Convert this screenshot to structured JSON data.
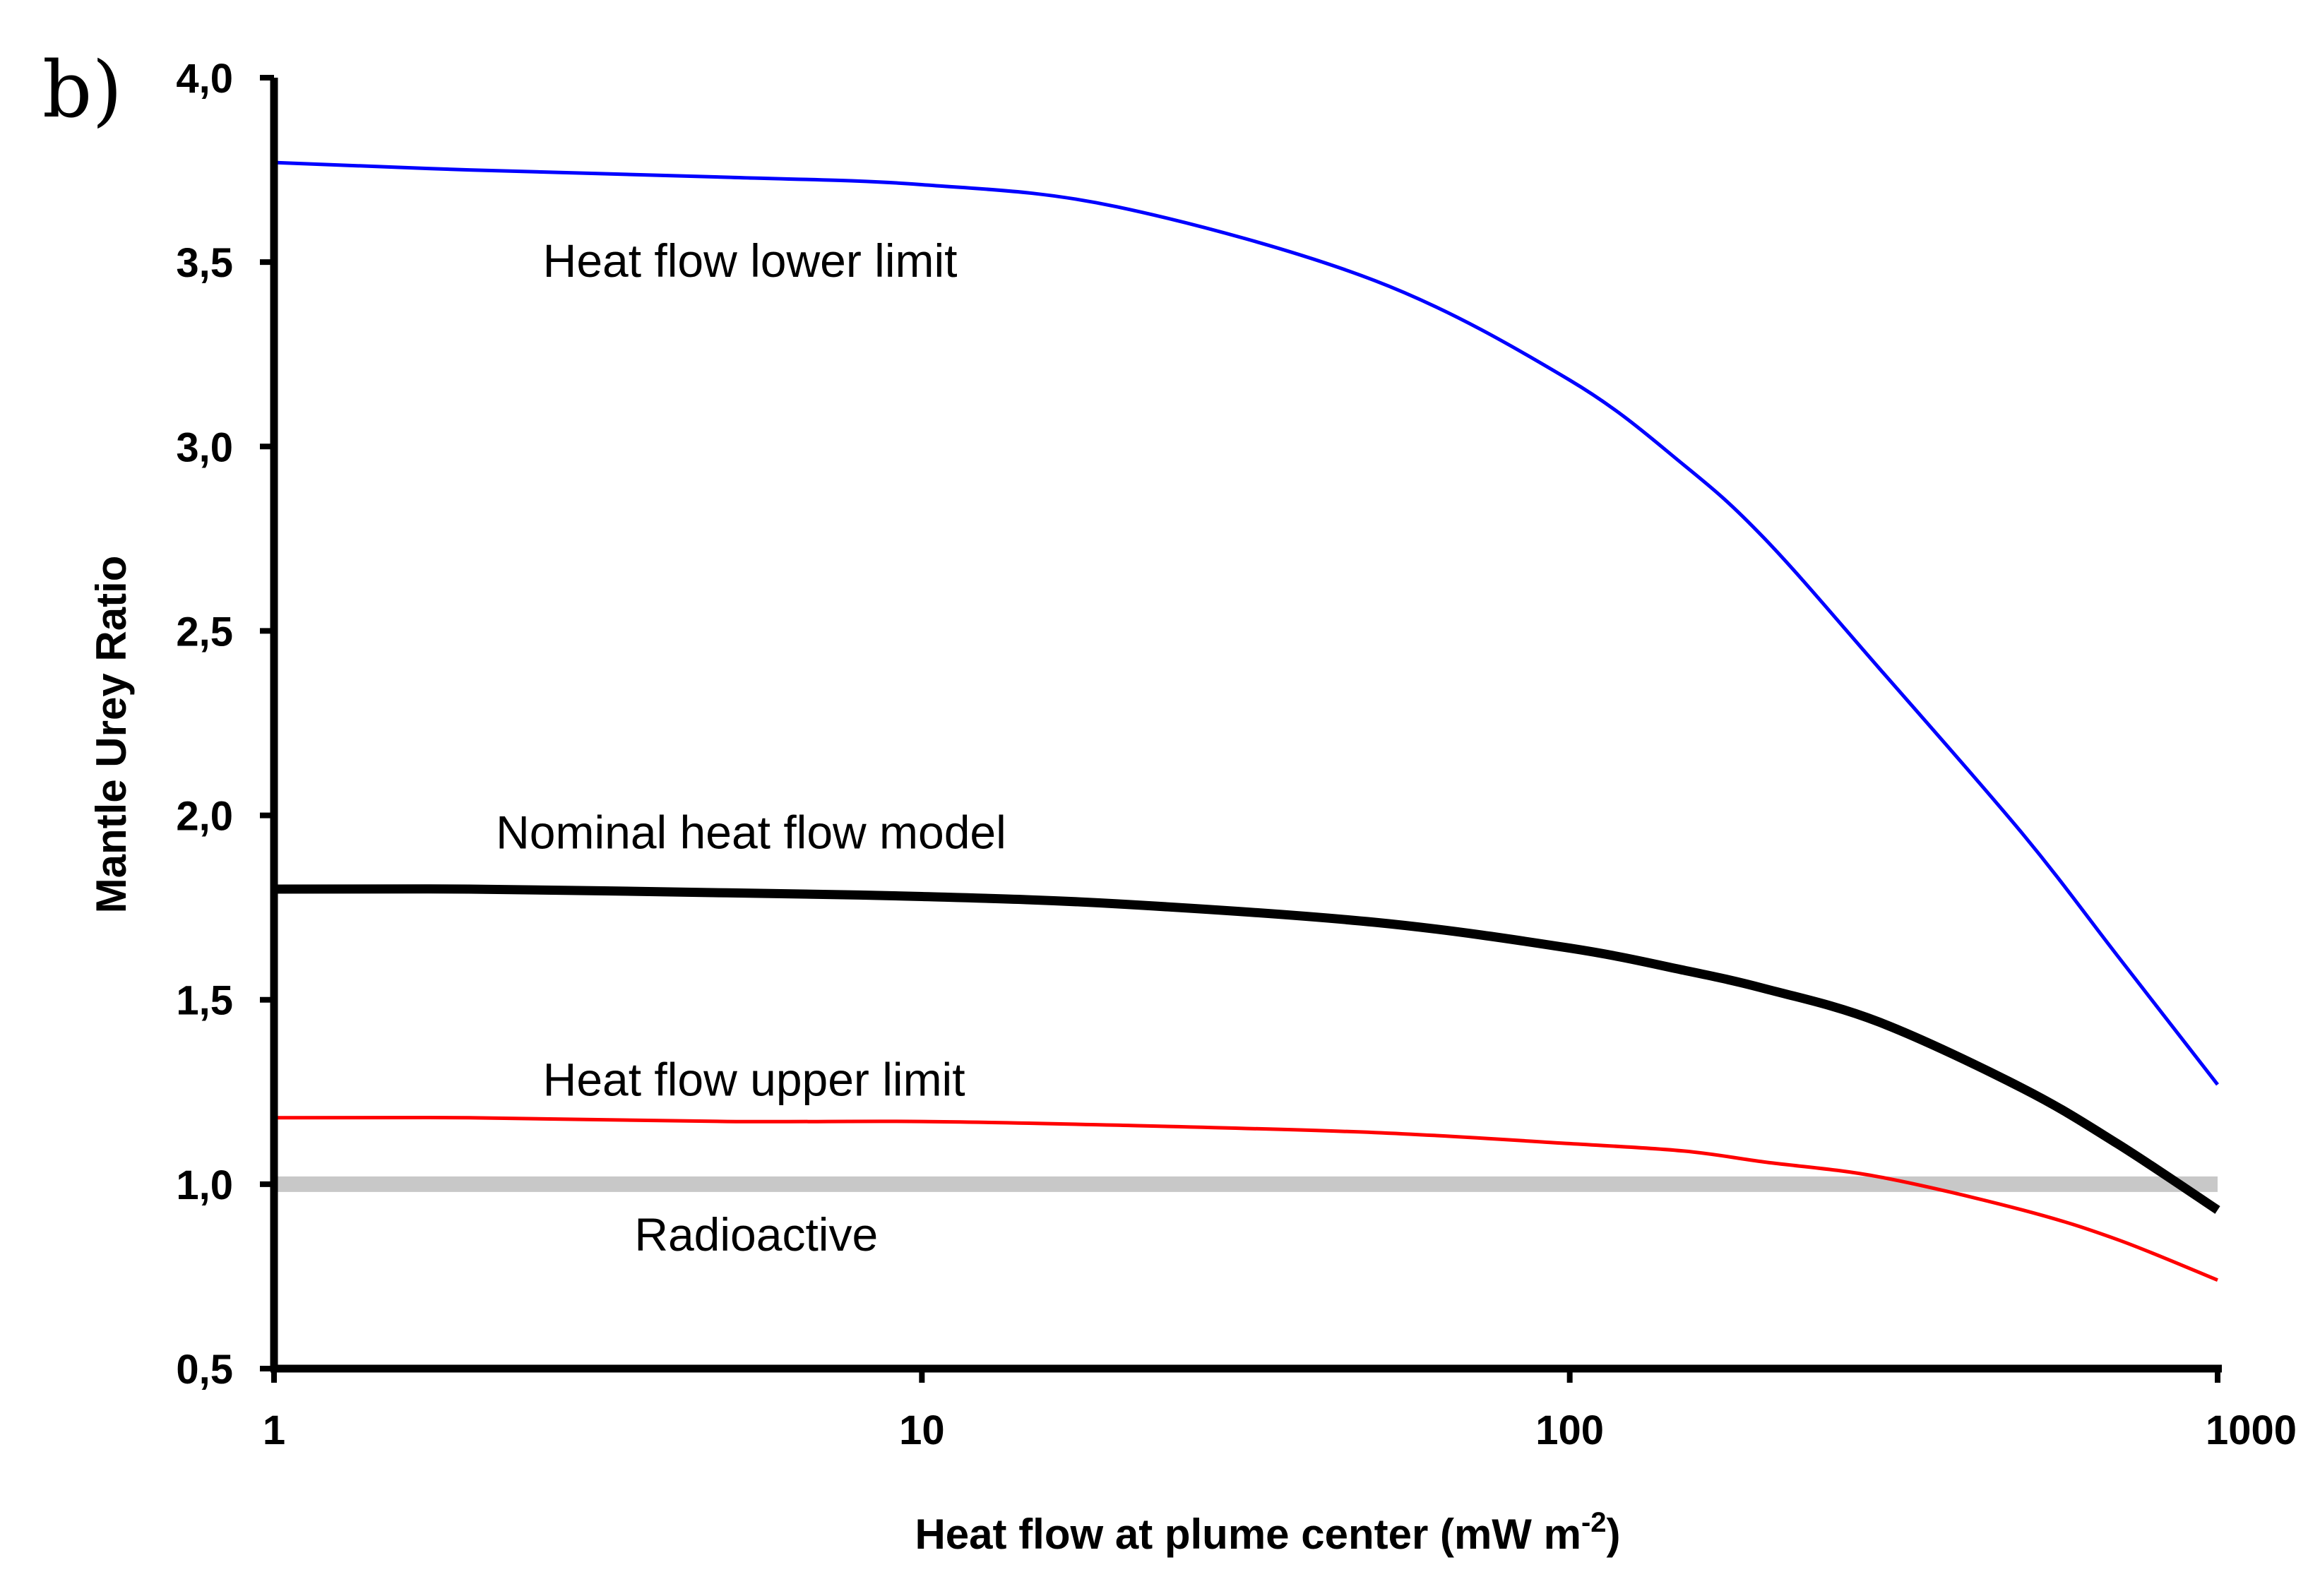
{
  "panel_label": "b)",
  "chart_data": {
    "type": "line",
    "x_scale": "log",
    "xlim": [
      1,
      1000
    ],
    "ylim": [
      0.5,
      4.0
    ],
    "xlabel": "Heat flow at plume center (mW m",
    "xlabel_sup": "-2",
    "xlabel_end": ")",
    "ylabel": "Mantle Urey Ratio",
    "x_ticks": [
      1,
      10,
      100,
      1000
    ],
    "x_tick_labels": [
      "1",
      "10",
      "100",
      "1000"
    ],
    "y_ticks": [
      0.5,
      1.0,
      1.5,
      2.0,
      2.5,
      3.0,
      3.5,
      4.0
    ],
    "y_tick_labels": [
      "0,5",
      "1,0",
      "1,5",
      "2,0",
      "2,5",
      "3,0",
      "3,5",
      "4,0"
    ],
    "grid": false,
    "series": [
      {
        "name": "Radioactive",
        "color": "#c8c8c8",
        "x": [
          1,
          1000
        ],
        "y": [
          1.0,
          1.0
        ]
      },
      {
        "name": "Heat flow lower limit",
        "color": "#0000ff",
        "x": [
          1,
          2,
          5,
          10,
          20,
          50,
          100,
          150,
          200,
          300,
          500,
          700,
          1000
        ],
        "y": [
          3.77,
          3.75,
          3.73,
          3.71,
          3.65,
          3.45,
          3.18,
          2.95,
          2.75,
          2.4,
          1.95,
          1.62,
          1.27
        ]
      },
      {
        "name": "Nominal heat flow model",
        "color": "#000000",
        "x": [
          1,
          2,
          5,
          10,
          20,
          50,
          100,
          150,
          200,
          300,
          500,
          700,
          1000
        ],
        "y": [
          1.8,
          1.8,
          1.79,
          1.78,
          1.76,
          1.71,
          1.64,
          1.58,
          1.53,
          1.44,
          1.26,
          1.11,
          0.93
        ]
      },
      {
        "name": "Heat flow upper limit",
        "color": "#ff0000",
        "x": [
          1,
          2,
          5,
          10,
          20,
          50,
          100,
          150,
          200,
          300,
          500,
          700,
          1000
        ],
        "y": [
          1.18,
          1.18,
          1.17,
          1.17,
          1.16,
          1.14,
          1.11,
          1.09,
          1.06,
          1.02,
          0.93,
          0.85,
          0.74
        ]
      }
    ],
    "annotations": [
      {
        "text": "Heat flow lower limit",
        "x": 2.6,
        "y": 3.46
      },
      {
        "text": "Nominal  heat flow model",
        "x": 2.2,
        "y": 1.91
      },
      {
        "text": "Heat flow upper limit",
        "x": 2.6,
        "y": 1.24
      },
      {
        "text": "Radioactive",
        "x": 3.6,
        "y": 0.82
      }
    ]
  }
}
